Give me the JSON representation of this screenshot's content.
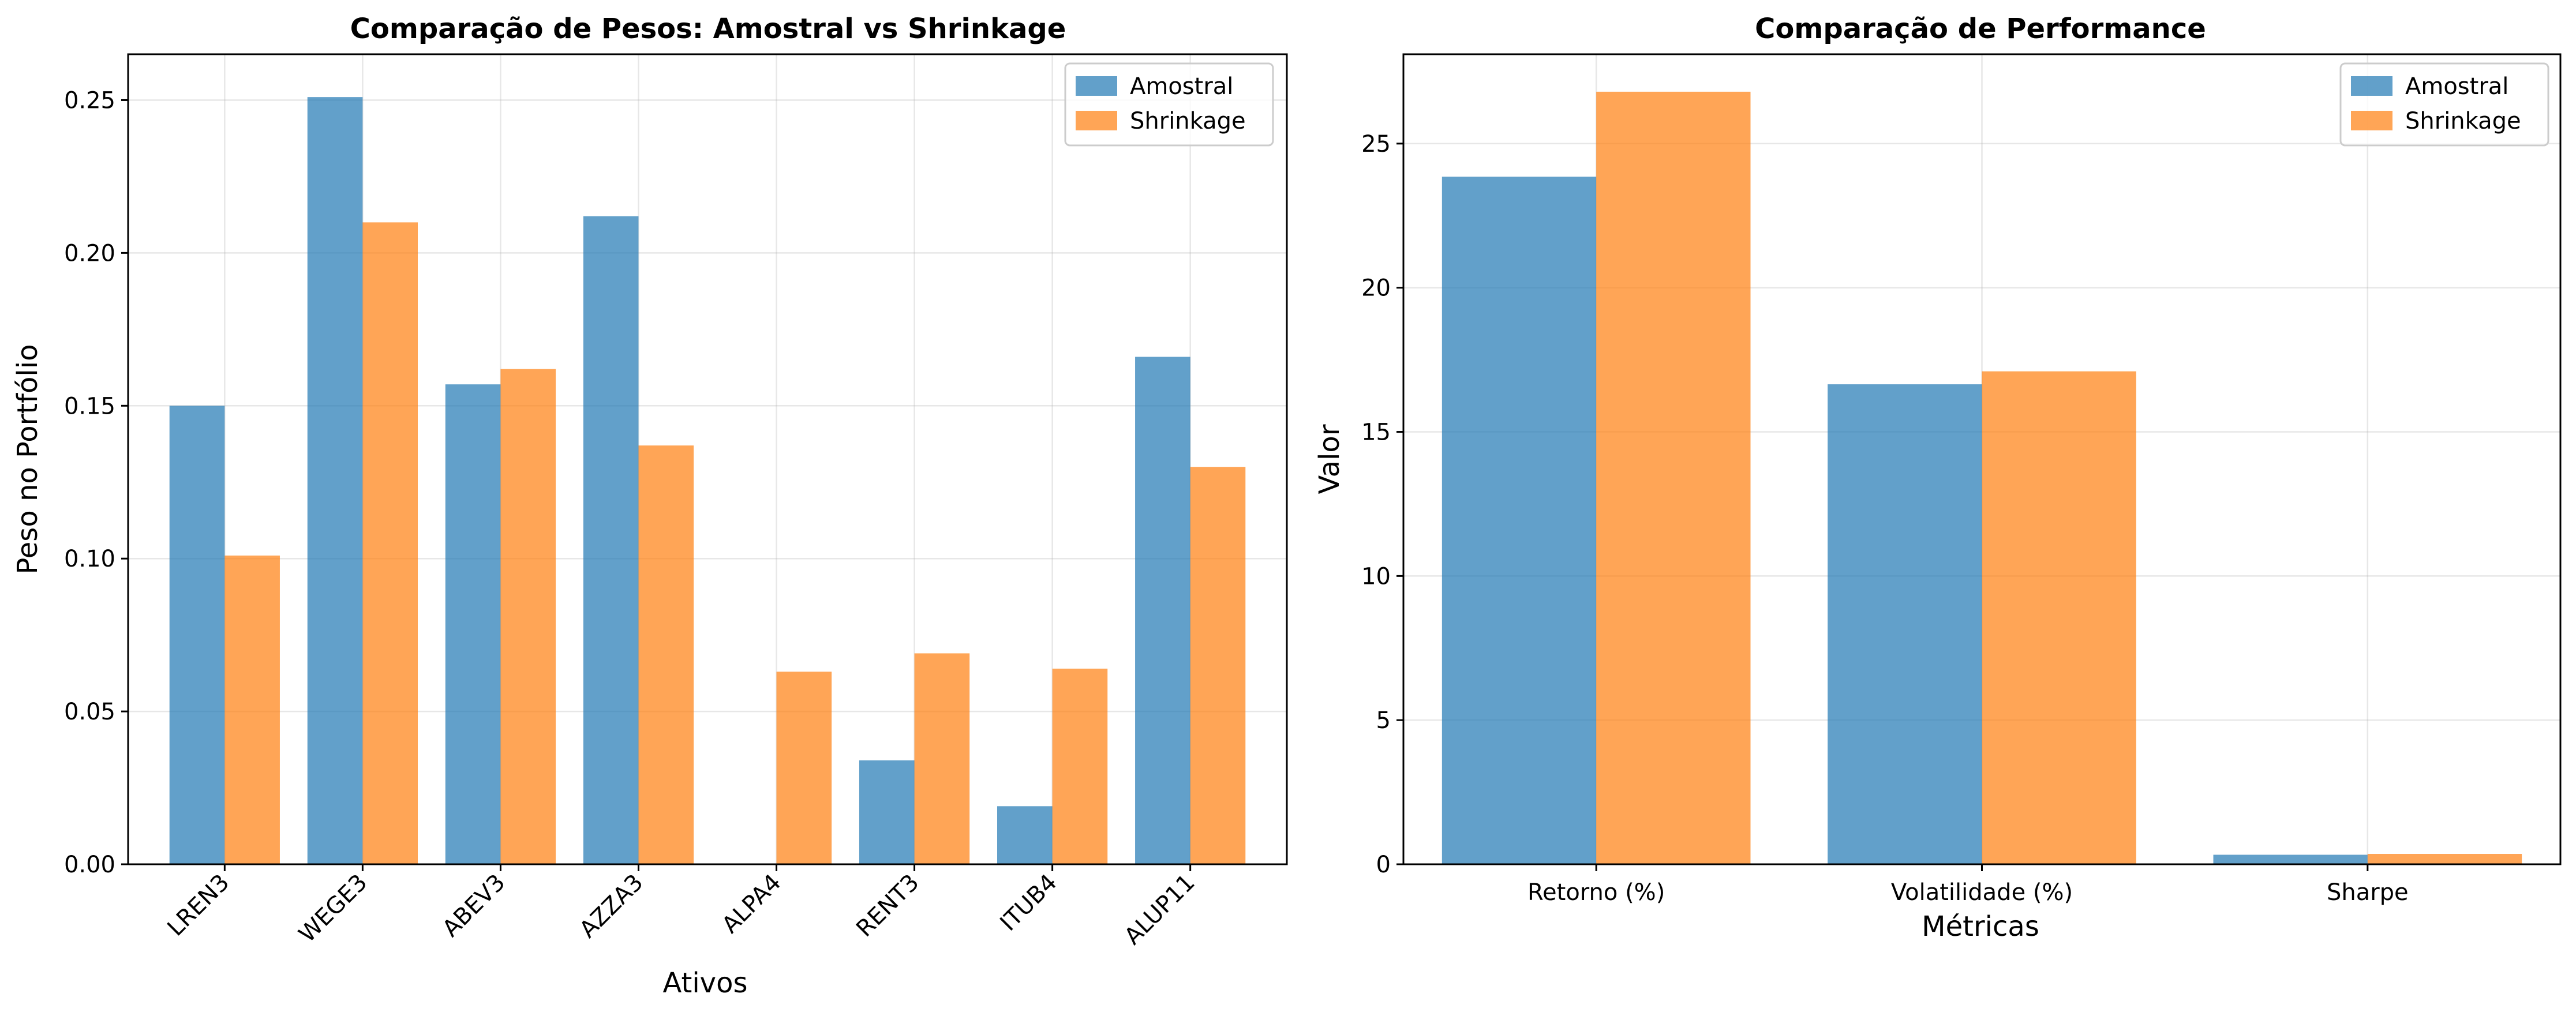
{
  "colors": {
    "amostral": "#1f77b4",
    "shrinkage": "#ff7f0e"
  },
  "chart_data": [
    {
      "type": "bar",
      "title": "Comparação de Pesos: Amostral vs Shrinkage",
      "xlabel": "Ativos",
      "ylabel": "Peso no Portfólio",
      "categories": [
        "LREN3",
        "WEGE3",
        "ABEV3",
        "AZZA3",
        "ALPA4",
        "RENT3",
        "ITUB4",
        "ALUP11"
      ],
      "series": [
        {
          "name": "Amostral",
          "values": [
            0.15,
            0.251,
            0.157,
            0.212,
            0.0,
            0.034,
            0.019,
            0.166
          ]
        },
        {
          "name": "Shrinkage",
          "values": [
            0.101,
            0.21,
            0.162,
            0.137,
            0.063,
            0.069,
            0.064,
            0.13
          ]
        }
      ],
      "ylim": [
        0,
        0.265
      ],
      "yticks": [
        "0.00",
        "0.05",
        "0.10",
        "0.15",
        "0.20",
        "0.25"
      ],
      "legend_position": "top-right",
      "grid": true
    },
    {
      "type": "bar",
      "title": "Comparação de Performance",
      "xlabel": "Métricas",
      "ylabel": "Valor",
      "categories": [
        "Retorno (%)",
        "Volatilidade (%)",
        "Sharpe"
      ],
      "series": [
        {
          "name": "Amostral",
          "values": [
            23.85,
            16.65,
            0.33
          ]
        },
        {
          "name": "Shrinkage",
          "values": [
            26.8,
            17.1,
            0.36
          ]
        }
      ],
      "ylim": [
        0,
        28.1
      ],
      "yticks": [
        "0",
        "5",
        "10",
        "15",
        "20",
        "25"
      ],
      "legend_position": "top-right",
      "grid": true
    }
  ]
}
